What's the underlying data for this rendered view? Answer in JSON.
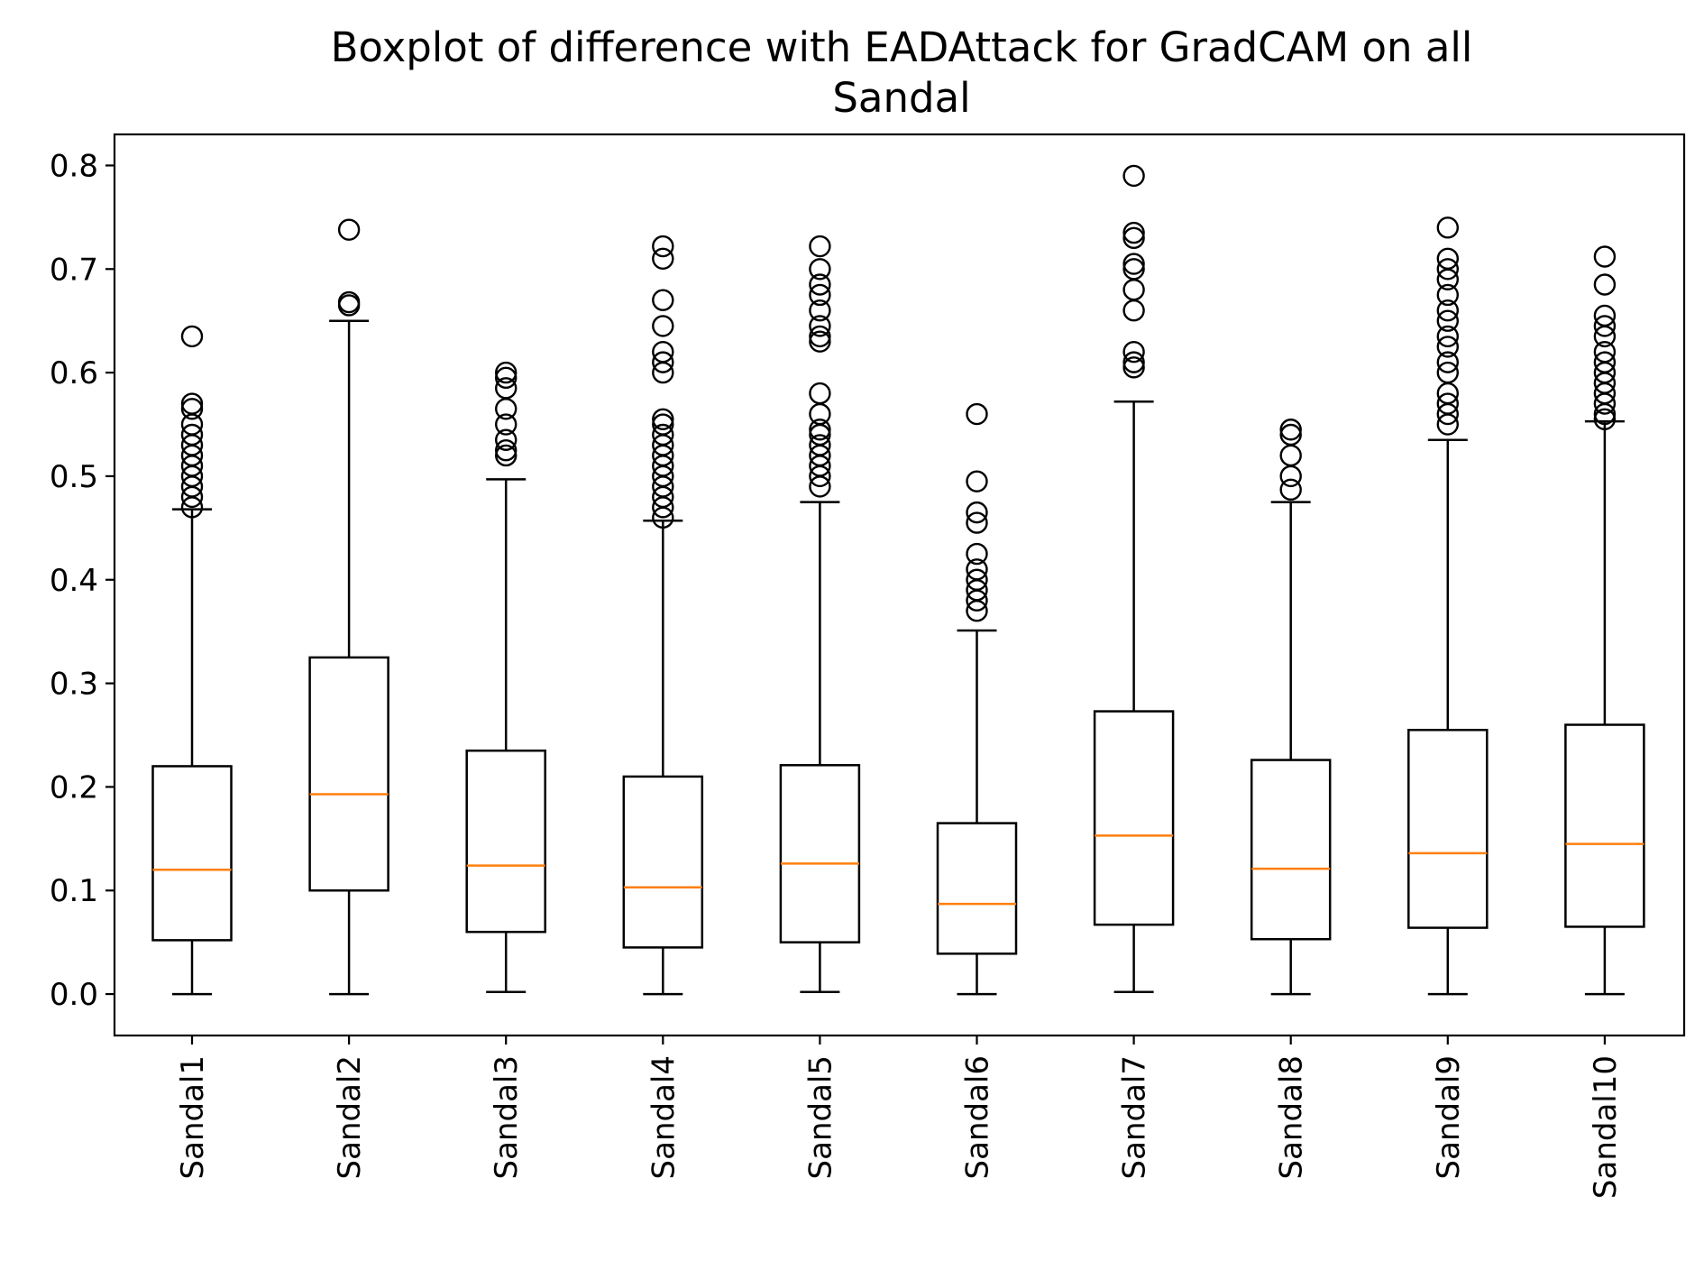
{
  "chart_data": {
    "type": "boxplot",
    "title_lines": [
      "Boxplot of difference with EADAttack for GradCAM on all",
      "Sandal"
    ],
    "xlabel": "",
    "ylabel": "",
    "ylim": [
      -0.04,
      0.83
    ],
    "yticks": [
      0.0,
      0.1,
      0.2,
      0.3,
      0.4,
      0.5,
      0.6,
      0.7,
      0.8
    ],
    "ytick_labels": [
      "0.0",
      "0.1",
      "0.2",
      "0.3",
      "0.4",
      "0.5",
      "0.6",
      "0.7",
      "0.8"
    ],
    "categories": [
      "Sandal1",
      "Sandal2",
      "Sandal3",
      "Sandal4",
      "Sandal5",
      "Sandal6",
      "Sandal7",
      "Sandal8",
      "Sandal9",
      "Sandal10"
    ],
    "colors": {
      "box": "#000000",
      "median": "#ff7f0e",
      "flier": "#000000"
    },
    "boxes": [
      {
        "name": "Sandal1",
        "whislo": 0.0,
        "q1": 0.052,
        "med": 0.12,
        "q3": 0.22,
        "whishi": 0.468,
        "fliers": [
          0.47,
          0.48,
          0.49,
          0.5,
          0.51,
          0.52,
          0.53,
          0.54,
          0.55,
          0.565,
          0.57,
          0.635
        ]
      },
      {
        "name": "Sandal2",
        "whislo": 0.0,
        "q1": 0.1,
        "med": 0.193,
        "q3": 0.325,
        "whishi": 0.65,
        "fliers": [
          0.665,
          0.668,
          0.738
        ]
      },
      {
        "name": "Sandal3",
        "whislo": 0.002,
        "q1": 0.06,
        "med": 0.124,
        "q3": 0.235,
        "whishi": 0.497,
        "fliers": [
          0.52,
          0.525,
          0.535,
          0.55,
          0.565,
          0.585,
          0.595,
          0.6
        ]
      },
      {
        "name": "Sandal4",
        "whislo": 0.0,
        "q1": 0.045,
        "med": 0.103,
        "q3": 0.21,
        "whishi": 0.457,
        "fliers": [
          0.46,
          0.47,
          0.48,
          0.49,
          0.5,
          0.51,
          0.52,
          0.53,
          0.54,
          0.55,
          0.555,
          0.6,
          0.61,
          0.62,
          0.645,
          0.67,
          0.71,
          0.722
        ]
      },
      {
        "name": "Sandal5",
        "whislo": 0.002,
        "q1": 0.05,
        "med": 0.126,
        "q3": 0.221,
        "whishi": 0.475,
        "fliers": [
          0.49,
          0.5,
          0.51,
          0.52,
          0.53,
          0.54,
          0.545,
          0.56,
          0.58,
          0.63,
          0.635,
          0.645,
          0.66,
          0.675,
          0.685,
          0.7,
          0.722
        ]
      },
      {
        "name": "Sandal6",
        "whislo": 0.0,
        "q1": 0.039,
        "med": 0.087,
        "q3": 0.165,
        "whishi": 0.351,
        "fliers": [
          0.37,
          0.38,
          0.39,
          0.4,
          0.41,
          0.425,
          0.455,
          0.465,
          0.495,
          0.56
        ]
      },
      {
        "name": "Sandal7",
        "whislo": 0.002,
        "q1": 0.067,
        "med": 0.153,
        "q3": 0.273,
        "whishi": 0.572,
        "fliers": [
          0.605,
          0.61,
          0.62,
          0.66,
          0.68,
          0.7,
          0.705,
          0.73,
          0.735,
          0.79
        ]
      },
      {
        "name": "Sandal8",
        "whislo": 0.0,
        "q1": 0.053,
        "med": 0.121,
        "q3": 0.226,
        "whishi": 0.475,
        "fliers": [
          0.487,
          0.5,
          0.52,
          0.54,
          0.545
        ]
      },
      {
        "name": "Sandal9",
        "whislo": 0.0,
        "q1": 0.064,
        "med": 0.136,
        "q3": 0.255,
        "whishi": 0.535,
        "fliers": [
          0.55,
          0.56,
          0.57,
          0.58,
          0.6,
          0.61,
          0.625,
          0.635,
          0.65,
          0.66,
          0.675,
          0.69,
          0.7,
          0.71,
          0.74
        ]
      },
      {
        "name": "Sandal10",
        "whislo": 0.0,
        "q1": 0.065,
        "med": 0.145,
        "q3": 0.26,
        "whishi": 0.553,
        "fliers": [
          0.555,
          0.56,
          0.57,
          0.58,
          0.59,
          0.6,
          0.61,
          0.62,
          0.635,
          0.645,
          0.655,
          0.685,
          0.712
        ]
      }
    ]
  }
}
